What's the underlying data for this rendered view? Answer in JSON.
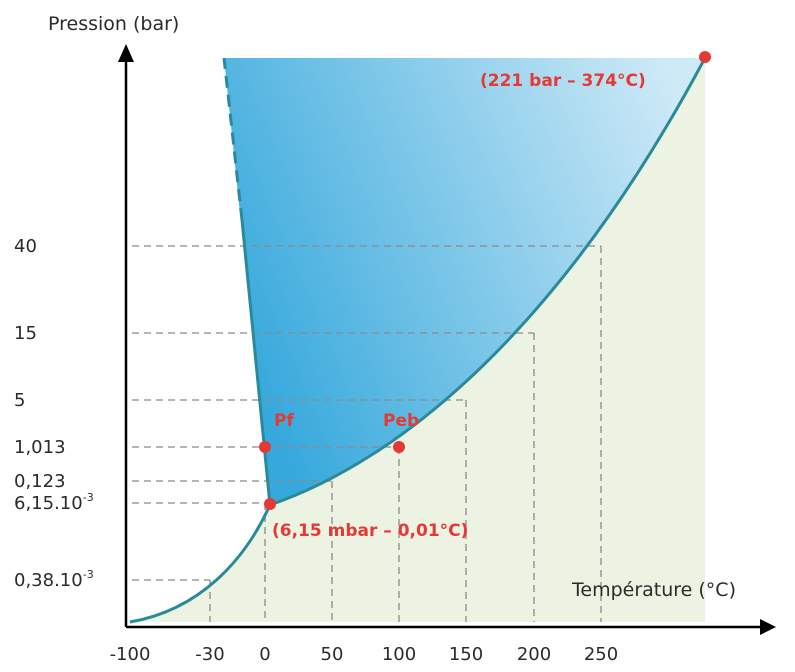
{
  "chart_data": {
    "type": "line",
    "title": "",
    "ylabel": "Pression (bar)",
    "xlabel": "Température (°C)",
    "x_ticks": [
      "-100",
      "-30",
      "0",
      "50",
      "100",
      "150",
      "200",
      "250"
    ],
    "y_ticks": [
      {
        "base": "40",
        "sup": ""
      },
      {
        "base": "15",
        "sup": ""
      },
      {
        "base": "5",
        "sup": ""
      },
      {
        "base": "1,013",
        "sup": ""
      },
      {
        "base": "0,123",
        "sup": ""
      },
      {
        "base": "6,15.10",
        "sup": "-3"
      },
      {
        "base": "0,38.10",
        "sup": "-3"
      }
    ],
    "points": {
      "critical": {
        "label": "(221 bar – 374°C)",
        "temperature_c": 374,
        "pressure_bar": 221
      },
      "triple": {
        "label": "(6,15 mbar – 0,01°C)",
        "temperature_c": 0.01,
        "pressure_bar": 0.00615
      },
      "fusion": {
        "label": "Pf",
        "temperature_c": 0,
        "pressure_bar": 1.013
      },
      "ebullition": {
        "label": "Peb",
        "temperature_c": 100,
        "pressure_bar": 1.013
      }
    },
    "grid": "dashed guide lines at labelled points",
    "colors": {
      "curve": "#2a8a9a",
      "point": "#e53935",
      "liquid_top": "#cfeaf7",
      "liquid_deep": "#35a8dc",
      "vapor": "#edf3e3",
      "axis": "#000000",
      "guide": "#8a8a8a"
    }
  }
}
